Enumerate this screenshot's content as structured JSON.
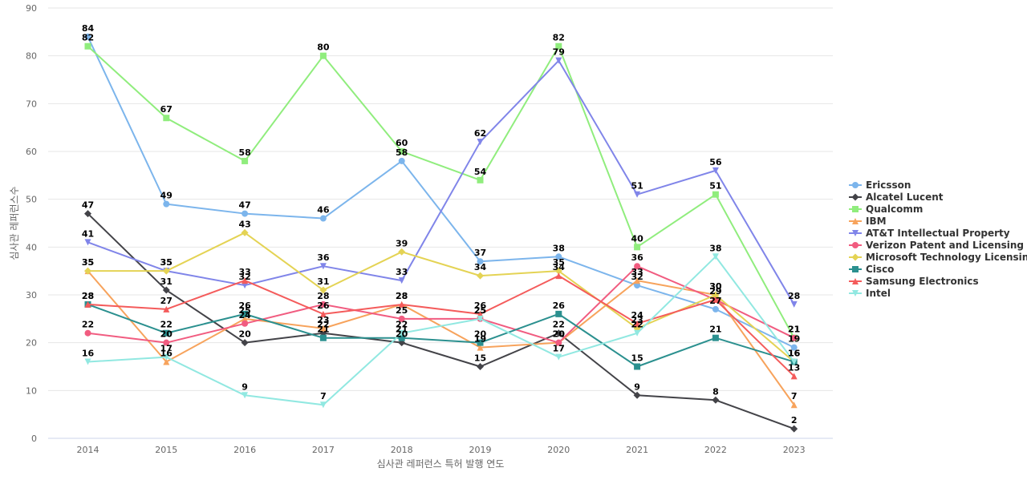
{
  "chart_data": {
    "type": "line",
    "title": "",
    "xlabel": "심사관 레퍼런스 특허 발행 연도",
    "ylabel": "심사관 레퍼런스수",
    "x": [
      "2014",
      "2015",
      "2016",
      "2017",
      "2018",
      "2019",
      "2020",
      "2021",
      "2022",
      "2023"
    ],
    "ylim": [
      0,
      90
    ],
    "yticks": [
      0,
      10,
      20,
      30,
      40,
      50,
      60,
      70,
      80,
      90
    ],
    "grid": true,
    "legend_position": "right",
    "series": [
      {
        "name": "Ericsson",
        "color": "#7cb5ec",
        "marker": "circle",
        "values": [
          84,
          49,
          47,
          46,
          58,
          37,
          38,
          32,
          27,
          19
        ]
      },
      {
        "name": "Alcatel Lucent",
        "color": "#434348",
        "marker": "diamond",
        "values": [
          47,
          31,
          20,
          22,
          20,
          15,
          22,
          9,
          8,
          2
        ]
      },
      {
        "name": "Qualcomm",
        "color": "#90ed7d",
        "marker": "square",
        "values": [
          82,
          67,
          58,
          80,
          60,
          54,
          82,
          40,
          51,
          21
        ]
      },
      {
        "name": "IBM",
        "color": "#f7a35c",
        "marker": "triangle",
        "values": [
          35,
          16,
          25,
          23,
          28,
          19,
          20,
          33,
          30,
          7
        ]
      },
      {
        "name": "AT&T Intellectual Property",
        "color": "#8085e9",
        "marker": "triangle-down",
        "values": [
          41,
          35,
          32,
          36,
          33,
          62,
          79,
          51,
          56,
          28
        ]
      },
      {
        "name": "Verizon Patent and Licensing",
        "color": "#f15c80",
        "marker": "circle",
        "values": [
          22,
          20,
          24,
          28,
          25,
          25,
          20,
          36,
          29,
          21
        ]
      },
      {
        "name": "Microsoft Technology Licensing",
        "color": "#e4d354",
        "marker": "diamond",
        "values": [
          35,
          35,
          43,
          31,
          39,
          34,
          35,
          23,
          30,
          16
        ]
      },
      {
        "name": "Cisco",
        "color": "#2b908f",
        "marker": "square",
        "values": [
          28,
          22,
          26,
          21,
          21,
          20,
          26,
          15,
          21,
          16
        ]
      },
      {
        "name": "Samsung Electronics",
        "color": "#f45b5b",
        "marker": "triangle",
        "values": [
          28,
          27,
          33,
          26,
          28,
          26,
          34,
          24,
          29,
          13
        ]
      },
      {
        "name": "Intel",
        "color": "#91e8e1",
        "marker": "triangle-down",
        "values": [
          16,
          17,
          9,
          7,
          22,
          25,
          17,
          22,
          38,
          16
        ]
      }
    ]
  }
}
